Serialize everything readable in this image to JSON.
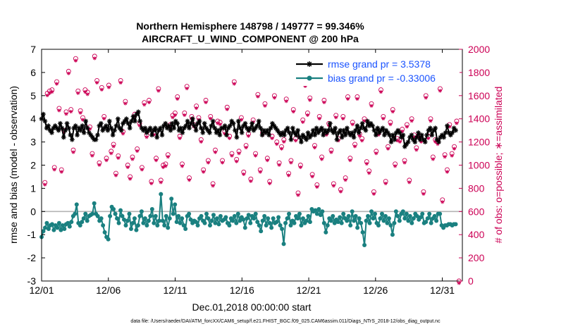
{
  "chart_data": {
    "type": "line",
    "title_line1": "Northern Hemisphere 148798 / 149777 = 99.346%",
    "title_line2": "AIRCRAFT_U_WIND_COMPONENT @ 200 hPa",
    "xlabel": "Dec.01,2018 00:00:00 start",
    "ylabel": "rmse and bias (model - observation)",
    "ylabel_right": "# of obs: o=possible; ∗=assimilated",
    "xlim": [
      0,
      31.5
    ],
    "ylim": [
      -3,
      7
    ],
    "ylim_right": [
      0,
      2000
    ],
    "x_ticks": [
      0,
      5,
      10,
      15,
      20,
      25,
      30
    ],
    "x_tick_labels": [
      "12/01",
      "12/06",
      "12/11",
      "12/16",
      "12/21",
      "12/26",
      "12/31"
    ],
    "y_ticks": [
      -3,
      -2,
      -1,
      0,
      1,
      2,
      3,
      4,
      5,
      6,
      7
    ],
    "y_tick_labels": [
      "-3",
      "-2",
      "-1",
      "0",
      "1",
      "2",
      "3",
      "4",
      "5",
      "6",
      "7"
    ],
    "y_right_ticks": [
      0,
      200,
      400,
      600,
      800,
      1000,
      1200,
      1400,
      1600,
      1800,
      2000
    ],
    "y_right_tick_labels": [
      "0",
      "200",
      "400",
      "600",
      "800",
      "1000",
      "1200",
      "1400",
      "1600",
      "1800",
      "2000"
    ],
    "zero_line": 0,
    "series": [
      {
        "name": "rmse grand pr = 3.5378",
        "color": "#000000",
        "marker": "asterisk",
        "axis": "left",
        "values": [
          4.0,
          4.2,
          3.9,
          3.6,
          3.7,
          3.5,
          3.4,
          3.6,
          3.7,
          3.6,
          3.5,
          3.8,
          3.6,
          3.2,
          3.5,
          3.8,
          3.6,
          3.3,
          3.1,
          3.6,
          3.7,
          3.3,
          3.6,
          3.5,
          3.7,
          3.4,
          3.9,
          3.6,
          3.4,
          3.3,
          3.2,
          3.1,
          3.1,
          3.3,
          3.7,
          3.8,
          3.5,
          3.6,
          3.7,
          3.5,
          3.9,
          3.6,
          3.3,
          3.5,
          3.7,
          4.0,
          3.6,
          3.5,
          3.8,
          3.9,
          4.0,
          3.8,
          3.6,
          3.9,
          4.1,
          3.9,
          4.2,
          4.3,
          3.9,
          3.6,
          3.5,
          3.6,
          3.4,
          3.5,
          3.6,
          3.3,
          3.5,
          3.6,
          3.2,
          3.5,
          3.6,
          3.3,
          3.7,
          3.8,
          3.6,
          3.7,
          3.5,
          3.8,
          3.6,
          3.9,
          3.8,
          3.5,
          3.6,
          3.4,
          3.6,
          3.7,
          3.9,
          3.6,
          3.8,
          4.0,
          3.7,
          3.5,
          3.8,
          3.9,
          3.6,
          3.4,
          3.8,
          3.6,
          3.5,
          3.4,
          3.7,
          3.9,
          3.6,
          3.4,
          3.5,
          3.3,
          3.6,
          3.6,
          3.7,
          3.3,
          3.6,
          3.7,
          3.9,
          3.8,
          3.5,
          3.2,
          3.9,
          3.6,
          3.4,
          3.7,
          3.8,
          3.6,
          3.5,
          3.6,
          3.8,
          3.5,
          3.6,
          3.7,
          3.9,
          3.6,
          3.3,
          3.5,
          3.4,
          3.5,
          3.3,
          3.6,
          3.8,
          3.7,
          3.6,
          3.5,
          3.4,
          3.3,
          3.4,
          3.3,
          3.5,
          3.6,
          3.4,
          3.1,
          3.6,
          3.4,
          3.3,
          3.5,
          3.2,
          3.0,
          3.3,
          3.2,
          3.1,
          3.4,
          3.2,
          3.3,
          3.5,
          3.3,
          3.6,
          3.4,
          3.5,
          3.6,
          3.3,
          3.5,
          3.4,
          3.5,
          3.8,
          3.5,
          3.4,
          3.6,
          3.1,
          3.4,
          3.5,
          3.2,
          3.5,
          3.3,
          3.6,
          3.4,
          3.3,
          3.4,
          3.2,
          3.5,
          3.7,
          3.4,
          3.6,
          3.8,
          3.6,
          3.5,
          3.9,
          3.7,
          3.8,
          3.7,
          3.5,
          3.3,
          3.6,
          3.4,
          3.5,
          3.6,
          3.3,
          3.5,
          3.4,
          3.3,
          3.0,
          3.3,
          3.1,
          3.4,
          3.5,
          3.4,
          3.2,
          3.3,
          2.8,
          2.9,
          3.0,
          3.2,
          3.3,
          3.1,
          3.0,
          3.2,
          3.4,
          3.1,
          3.3,
          3.1,
          3.0,
          3.3,
          3.5,
          3.6,
          3.3,
          3.5,
          3.6,
          3.1,
          3.0,
          3.2,
          3.3,
          3.2,
          3.4,
          3.7,
          3.4,
          3.3,
          3.4,
          3.6,
          3.5
        ]
      },
      {
        "name": "bias grand pr = -0.33006",
        "color": "#1a8080",
        "marker": "dot",
        "axis": "left",
        "values": [
          -1.1,
          -0.85,
          -0.7,
          -0.5,
          -0.75,
          -0.6,
          -0.55,
          -0.8,
          -0.6,
          -0.7,
          -0.5,
          -0.8,
          -0.6,
          -0.75,
          -0.55,
          -0.5,
          -0.65,
          -0.45,
          -0.2,
          -0.1,
          0.3,
          -0.5,
          -0.6,
          -0.45,
          -0.3,
          -0.1,
          -0.4,
          -0.2,
          -0.15,
          -0.1,
          0.35,
          -0.1,
          -0.2,
          -0.4,
          -0.3,
          -0.6,
          -0.9,
          -1.1,
          -1.2,
          -0.2,
          0.2,
          0.1,
          -0.1,
          -0.3,
          -0.5,
          0.05,
          -0.2,
          -0.35,
          -0.6,
          -0.4,
          -0.1,
          -0.75,
          -0.5,
          -0.3,
          -0.8,
          -0.6,
          -0.2,
          0.0,
          -0.5,
          -0.3,
          -0.6,
          -0.4,
          -0.2,
          0.1,
          -0.5,
          -0.2,
          -0.6,
          -0.4,
          0.75,
          -0.4,
          -0.6,
          -0.2,
          -0.7,
          -0.3,
          0.55,
          -0.1,
          0.3,
          -0.45,
          -0.2,
          -0.5,
          -0.3,
          -0.6,
          -0.75,
          -0.2,
          -0.1,
          -0.35,
          -0.5,
          -0.4,
          -0.45,
          -0.6,
          -0.3,
          -0.2,
          -0.4,
          -0.5,
          -0.1,
          -0.3,
          -0.6,
          -0.4,
          -0.15,
          -0.5,
          -0.3,
          -0.55,
          -0.2,
          -0.4,
          -0.35,
          -0.25,
          -0.5,
          -0.6,
          -0.3,
          -0.4,
          -0.2,
          -0.5,
          -0.1,
          -0.4,
          -0.25,
          -0.35,
          -0.7,
          -0.3,
          -0.15,
          -0.5,
          -0.2,
          -0.3,
          -0.1,
          -0.45,
          -0.6,
          -0.85,
          -0.4,
          -0.2,
          -0.6,
          -0.3,
          -0.5,
          -0.7,
          -0.3,
          -0.5,
          -0.45,
          -0.25,
          -0.6,
          -0.75,
          -1.4,
          -0.5,
          -0.3,
          -0.1,
          -0.6,
          -0.4,
          -0.5,
          -0.2,
          -0.3,
          -0.1,
          -0.6,
          -0.3,
          -0.5,
          -0.4,
          -0.2,
          -0.45,
          0.1,
          0.0,
          0.05,
          -0.1,
          0.1,
          -0.15,
          0.0,
          -0.5,
          -0.9,
          -0.6,
          -0.3,
          -0.4,
          -0.2,
          -0.5,
          -0.35,
          -0.45,
          -0.25,
          -0.5,
          -0.1,
          -0.3,
          -0.4,
          -0.2,
          -0.6,
          0.0,
          -0.4,
          -0.2,
          -0.7,
          -0.3,
          -0.5,
          -0.9,
          -1.45,
          -0.4,
          -0.2,
          -0.5,
          0.0,
          -0.3,
          -0.1,
          -0.5,
          -0.6,
          -0.3,
          -0.1,
          -0.4,
          -0.2,
          -0.5,
          -0.3,
          -0.6,
          -1.0,
          -0.5,
          0.0,
          -0.2,
          -0.4,
          -0.1,
          0.0,
          -0.3,
          -0.1,
          -0.4,
          -0.2,
          -0.5,
          -0.3,
          -0.1,
          -0.2,
          -0.35,
          -0.25,
          -0.1,
          -0.5,
          -0.45,
          -0.3,
          -0.1,
          -0.5,
          -0.3,
          -0.2,
          -0.4,
          -0.1,
          -0.1,
          -0.6,
          -0.7,
          -0.6,
          -0.6,
          -0.55,
          -0.55,
          -0.6,
          -0.55,
          -0.55
        ]
      },
      {
        "name": "# possible",
        "color": "#cc0055",
        "marker": "circle",
        "axis": "right",
        "values": [
          850,
          1620,
          1640,
          1650,
          980,
          1720,
          1490,
          960,
          1300,
          1460,
          1810,
          1480,
          1130,
          1920,
          1640,
          1470,
          1410,
          1650,
          1630,
          1330,
          1100,
          1940,
          1730,
          1020,
          1670,
          1420,
          1060,
          1690,
          1120,
          1180,
          930,
          1080,
          1730,
          1290,
          1550,
          1000,
          900,
          1070,
          1440,
          1140,
          1360,
          980,
          1540,
          1260,
          1560,
          860,
          1280,
          1060,
          1660,
          870,
          1000,
          1010,
          1090,
          1350,
          1430,
          1450,
          1590,
          1250,
          1010,
          1450,
          1680,
          890,
          1420,
          1350,
          1510,
          1410,
          1220,
          960,
          1560,
          1040,
          1420,
          840,
          1130,
          1380,
          1370,
          1040,
          1290,
          1500,
          1250,
          1100,
          1720,
          1050,
          1120,
          1410,
          940,
          1170,
          1270,
          880,
          1390,
          1100,
          1610,
          960,
          1280,
          1530,
          1060,
          860,
          1250,
          1600,
          1200,
          1020,
          1160,
          1220,
          1570,
          930,
          1040,
          1480,
          1230,
          760,
          1000,
          1390,
          1700,
          1450,
          1580,
          920,
          1170,
          830,
          1420,
          1070,
          1560,
          1280,
          1360,
          1130,
          840,
          1430,
          1230,
          790,
          1420,
          890,
          1590,
          1060,
          1370,
          1180,
          1590,
          1270,
          1230,
          1400,
          1030,
          950,
          1530,
          770,
          1120,
          1280,
          1650,
          1420,
          860,
          1160,
          1370,
          1480,
          1010,
          1230,
          1220,
          1310,
          1040,
          1350,
          870,
          1400,
          1260,
          1150,
          1260,
          1220,
          770,
          1600,
          1250,
          1400,
          1070,
          1220,
          1200,
          1660,
          700,
          1090,
          960,
          1350,
          1100,
          1160,
          1380,
          0
        ]
      }
    ],
    "legend": [
      "rmse grand pr = 3.5378",
      "bias grand pr = -0.33006"
    ],
    "legend_position": "top-right",
    "footnote": "data file: /Users/raeder/DAI/ATM_forcXX/CAM6_setup/f.e21.FHIST_BGC.f09_025.CAM6assim.011/Diags_NTrS_2018-12/obs_diag_output.nc"
  },
  "colors": {
    "rmse": "#000000",
    "bias": "#1a8080",
    "counts": "#cc0055",
    "zero_line": "#b3b3b3",
    "legend_text": "#1a53ff"
  }
}
